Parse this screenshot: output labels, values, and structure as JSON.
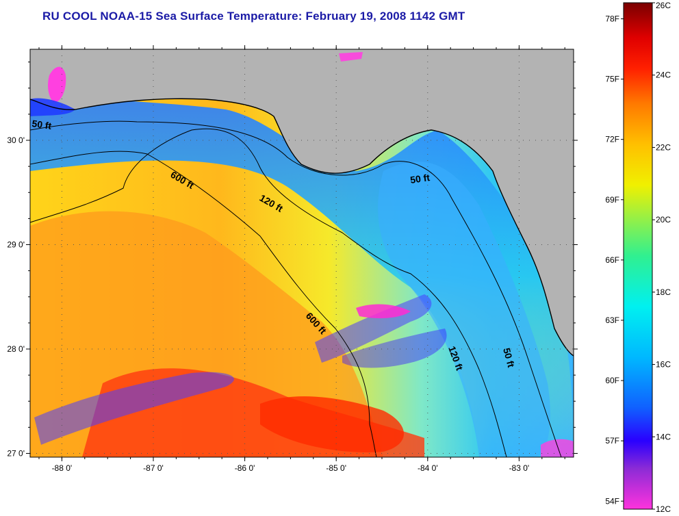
{
  "title": "RU COOL  NOAA-15  Sea Surface Temperature:  February 19, 2008 1142 GMT",
  "lat_labels": [
    "30 0'",
    "29 0'",
    "28 0'",
    "27 0'"
  ],
  "lat_values": [
    30,
    29,
    28,
    27
  ],
  "lon_labels": [
    "-88 0'",
    "-87 0'",
    "-86 0'",
    "-85 0'",
    "-84 0'",
    "-83 0'"
  ],
  "lon_values": [
    -88,
    -87,
    -86,
    -85,
    -84,
    -83
  ],
  "contour_labels": [
    "50 ft",
    "600 ft",
    "120 ft",
    "50 ft",
    "600 ft",
    "120 ft",
    "50 ft"
  ],
  "colorbar": {
    "fahrenheit_labels": [
      "78F",
      "75F",
      "72F",
      "69F",
      "66F",
      "63F",
      "60F",
      "57F",
      "54F"
    ],
    "celsius_labels": [
      "26C",
      "24C",
      "22C",
      "20C",
      "18C",
      "16C",
      "14C",
      "12C"
    ],
    "range_c": [
      12,
      26
    ]
  },
  "colors": {
    "land": "#b3b3b3",
    "title": "#1a1aa6"
  }
}
